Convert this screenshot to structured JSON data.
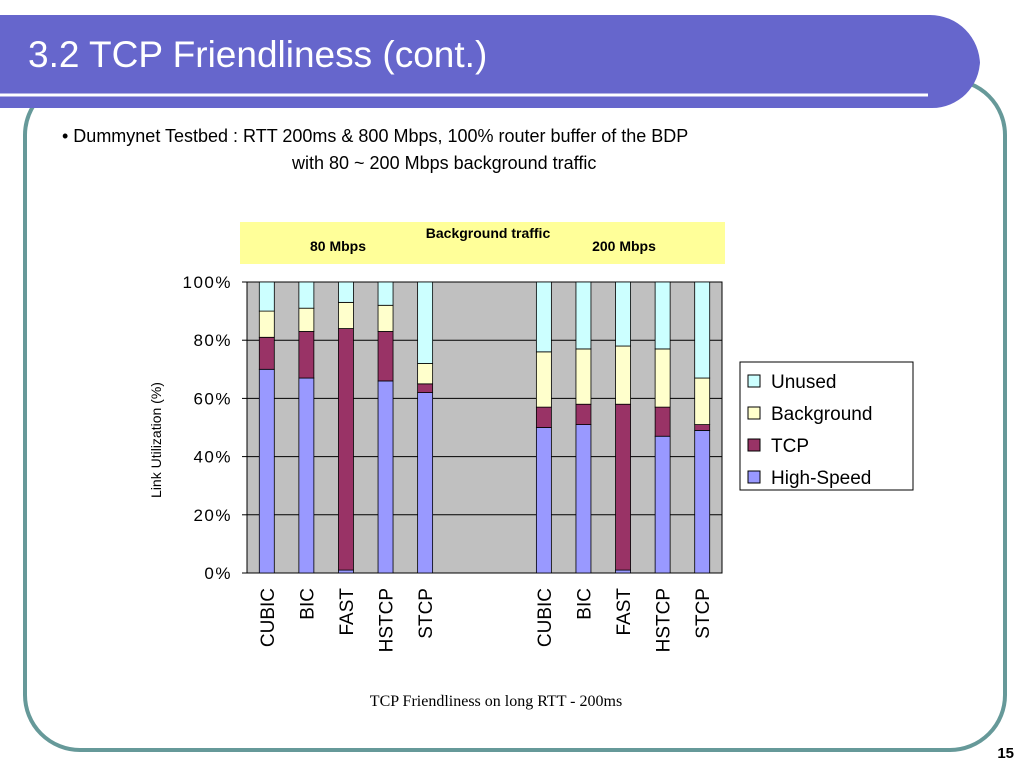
{
  "title": "3.2 TCP Friendliness (cont.)",
  "bullet": [
    "• Dummynet Testbed : RTT 200ms & 800 Mbps, 100% router buffer of the BDP",
    "with 80 ~ 200 Mbps background traffic"
  ],
  "page_number": "15",
  "chart_data": {
    "type": "bar",
    "stacked": true,
    "title": "TCP Friendliness on long RTT - 200ms",
    "y_label": "Link Utilization (%)",
    "annotations": {
      "header": "Background traffic",
      "left": "80 Mbps",
      "right": "200 Mbps"
    },
    "categories": [
      "CUBIC",
      "BIC",
      "FAST",
      "HSTCP",
      "STCP",
      null,
      null,
      "CUBIC",
      "BIC",
      "FAST",
      "HSTCP",
      "STCP"
    ],
    "series": [
      {
        "name": "Unused",
        "color": "#ccffff",
        "values": [
          10,
          9,
          7,
          8,
          28,
          null,
          null,
          24,
          23,
          22,
          23,
          33
        ]
      },
      {
        "name": "Background",
        "color": "#ffffcc",
        "values": [
          9,
          8,
          9,
          9,
          7,
          null,
          null,
          19,
          19,
          20,
          20,
          16
        ]
      },
      {
        "name": "TCP",
        "color": "#993366",
        "values": [
          11,
          16,
          83,
          17,
          3,
          null,
          null,
          7,
          7,
          57,
          10,
          2
        ]
      },
      {
        "name": "High-Speed",
        "color": "#9999ff",
        "values": [
          70,
          67,
          1,
          66,
          62,
          null,
          null,
          50,
          51,
          1,
          47,
          49
        ]
      }
    ],
    "ylim": [
      0,
      100
    ],
    "yticks": [
      {
        "value": 0,
        "label": "0%"
      },
      {
        "value": 20,
        "label": "20%"
      },
      {
        "value": 40,
        "label": "40%"
      },
      {
        "value": 60,
        "label": "60%"
      },
      {
        "value": 80,
        "label": "80%"
      },
      {
        "value": 100,
        "label": "100%"
      }
    ],
    "grid": true,
    "legend": "right"
  }
}
